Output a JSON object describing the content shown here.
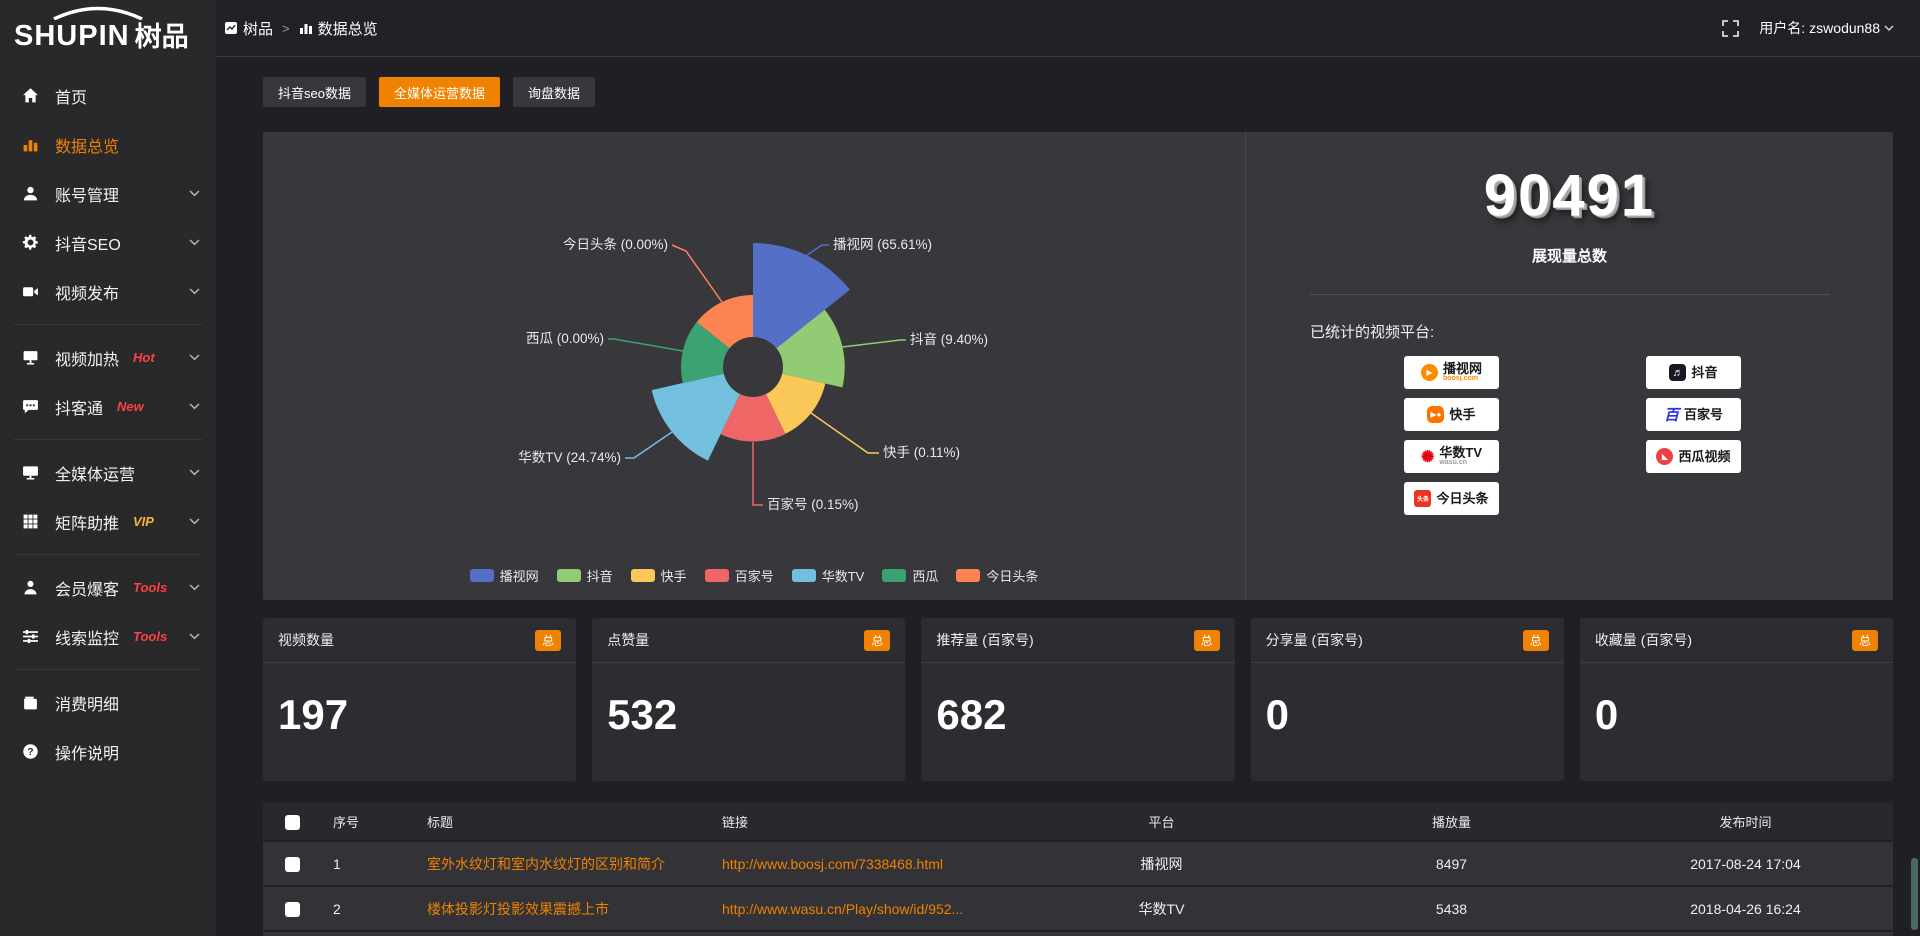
{
  "header": {
    "logo": {
      "brand": "SHUPIN",
      "brand_cn": "树品"
    },
    "breadcrumb": {
      "root": "树品",
      "separator": ">",
      "current": "数据总览"
    },
    "user": {
      "label": "用户名:",
      "name": "zswodun88"
    }
  },
  "sidebar": {
    "items": [
      {
        "id": "home",
        "icon": "home-icon",
        "label": "首页",
        "chevron": false,
        "active": false,
        "badge": null,
        "divider_after": false
      },
      {
        "id": "data-overview",
        "icon": "bar-chart-icon",
        "label": "数据总览",
        "chevron": false,
        "active": true,
        "badge": null,
        "divider_after": false
      },
      {
        "id": "account-manage",
        "icon": "user-icon",
        "label": "账号管理",
        "chevron": true,
        "active": false,
        "badge": null,
        "divider_after": false
      },
      {
        "id": "douyin-seo",
        "icon": "gear-icon",
        "label": "抖音SEO",
        "chevron": true,
        "active": false,
        "badge": null,
        "divider_after": false
      },
      {
        "id": "video-publish",
        "icon": "video-camera-icon",
        "label": "视频发布",
        "chevron": true,
        "active": false,
        "badge": null,
        "divider_after": true
      },
      {
        "id": "video-heat",
        "icon": "screen-icon",
        "label": "视频加热",
        "chevron": true,
        "active": false,
        "badge": {
          "text": "Hot",
          "color": "#ff4040"
        },
        "divider_after": false
      },
      {
        "id": "douketong",
        "icon": "chat-icon",
        "label": "抖客通",
        "chevron": true,
        "active": false,
        "badge": {
          "text": "New",
          "color": "#ff4040"
        },
        "divider_after": true
      },
      {
        "id": "media-operation",
        "icon": "monitor-icon",
        "label": "全媒体运营",
        "chevron": true,
        "active": false,
        "badge": null,
        "divider_after": false
      },
      {
        "id": "matrix-boost",
        "icon": "grid-icon",
        "label": "矩阵助推",
        "chevron": true,
        "active": false,
        "badge": {
          "text": "VIP",
          "color": "#f0b93c"
        },
        "divider_after": true
      },
      {
        "id": "member-baoke",
        "icon": "person-icon",
        "label": "会员爆客",
        "chevron": true,
        "active": false,
        "badge": {
          "text": "Tools",
          "color": "#ff4040"
        },
        "divider_after": false
      },
      {
        "id": "clue-monitor",
        "icon": "sliders-icon",
        "label": "线索监控",
        "chevron": true,
        "active": false,
        "badge": {
          "text": "Tools",
          "color": "#ff4040"
        },
        "divider_after": true
      },
      {
        "id": "consumption-detail",
        "icon": "wallet-icon",
        "label": "消费明细",
        "chevron": false,
        "active": false,
        "badge": null,
        "divider_after": false
      },
      {
        "id": "operation-guide",
        "icon": "question-icon",
        "label": "操作说明",
        "chevron": false,
        "active": false,
        "badge": null,
        "divider_after": false
      }
    ]
  },
  "tabs": [
    {
      "label": "抖音seo数据",
      "active": false
    },
    {
      "label": "全媒体运营数据",
      "active": true
    },
    {
      "label": "询盘数据",
      "active": false
    }
  ],
  "chart_data": {
    "type": "pie",
    "variant": "nightingale-rose",
    "title": "",
    "categories": [
      "播视网",
      "抖音",
      "快手",
      "百家号",
      "华数TV",
      "西瓜",
      "今日头条"
    ],
    "values_percent": [
      65.61,
      9.4,
      0.11,
      0.15,
      24.74,
      0.0,
      0.0
    ],
    "colors": [
      "#5470c6",
      "#91cc75",
      "#fac858",
      "#ee6666",
      "#73c0de",
      "#3ba272",
      "#fc8452"
    ],
    "label_format": "{name} ({value}%)",
    "legend_position": "bottom",
    "legend": [
      "播视网",
      "抖音",
      "快手",
      "百家号",
      "华数TV",
      "西瓜",
      "今日头条"
    ]
  },
  "summary": {
    "total_value": "90491",
    "total_label": "展现量总数",
    "platforms_title": "已统计的视频平台:",
    "platforms": [
      {
        "name": "播视网",
        "sub": "boosj.com",
        "icon": "boosj-play-icon",
        "color": "#ff8a00"
      },
      {
        "name": "抖音",
        "sub": "",
        "icon": "douyin-note-icon",
        "color": "#161823"
      },
      {
        "name": "快手",
        "sub": "",
        "icon": "kuaishou-icon",
        "color": "#ff7300"
      },
      {
        "name": "百家号",
        "sub": "",
        "icon": "baijiahao-icon",
        "color": "#2932e1"
      },
      {
        "name": "华数TV",
        "sub": "wasu.cn",
        "icon": "wasu-burst-icon",
        "color": "#e60012"
      },
      {
        "name": "西瓜视频",
        "sub": "",
        "icon": "xigua-icon",
        "color": "#f04142"
      },
      {
        "name": "今日头条",
        "sub": "",
        "icon": "toutiao-icon",
        "color": "#ed3321"
      }
    ]
  },
  "stat_cards": [
    {
      "label": "视频数量",
      "badge": "总",
      "value": "197"
    },
    {
      "label": "点赞量",
      "badge": "总",
      "value": "532"
    },
    {
      "label": "推荐量 (百家号)",
      "badge": "总",
      "value": "682"
    },
    {
      "label": "分享量 (百家号)",
      "badge": "总",
      "value": "0"
    },
    {
      "label": "收藏量 (百家号)",
      "badge": "总",
      "value": "0"
    }
  ],
  "table": {
    "headers": [
      "序号",
      "标题",
      "链接",
      "平台",
      "播放量",
      "发布时间"
    ],
    "rows": [
      {
        "no": "1",
        "title": "室外水纹灯和室内水纹灯的区别和简介",
        "link": "http://www.boosj.com/7338468.html",
        "platform": "播视网",
        "plays": "8497",
        "time": "2017-08-24 17:04"
      },
      {
        "no": "2",
        "title": "楼体投影灯投影效果震撼上市",
        "link": "http://www.wasu.cn/Play/show/id/952...",
        "platform": "华数TV",
        "plays": "5438",
        "time": "2018-04-26 16:24"
      }
    ]
  },
  "colors": {
    "accent": "#ef8201",
    "hot": "#ff4040",
    "vip": "#f0b93c",
    "panel": "#38383c",
    "card": "#2c2c31"
  }
}
